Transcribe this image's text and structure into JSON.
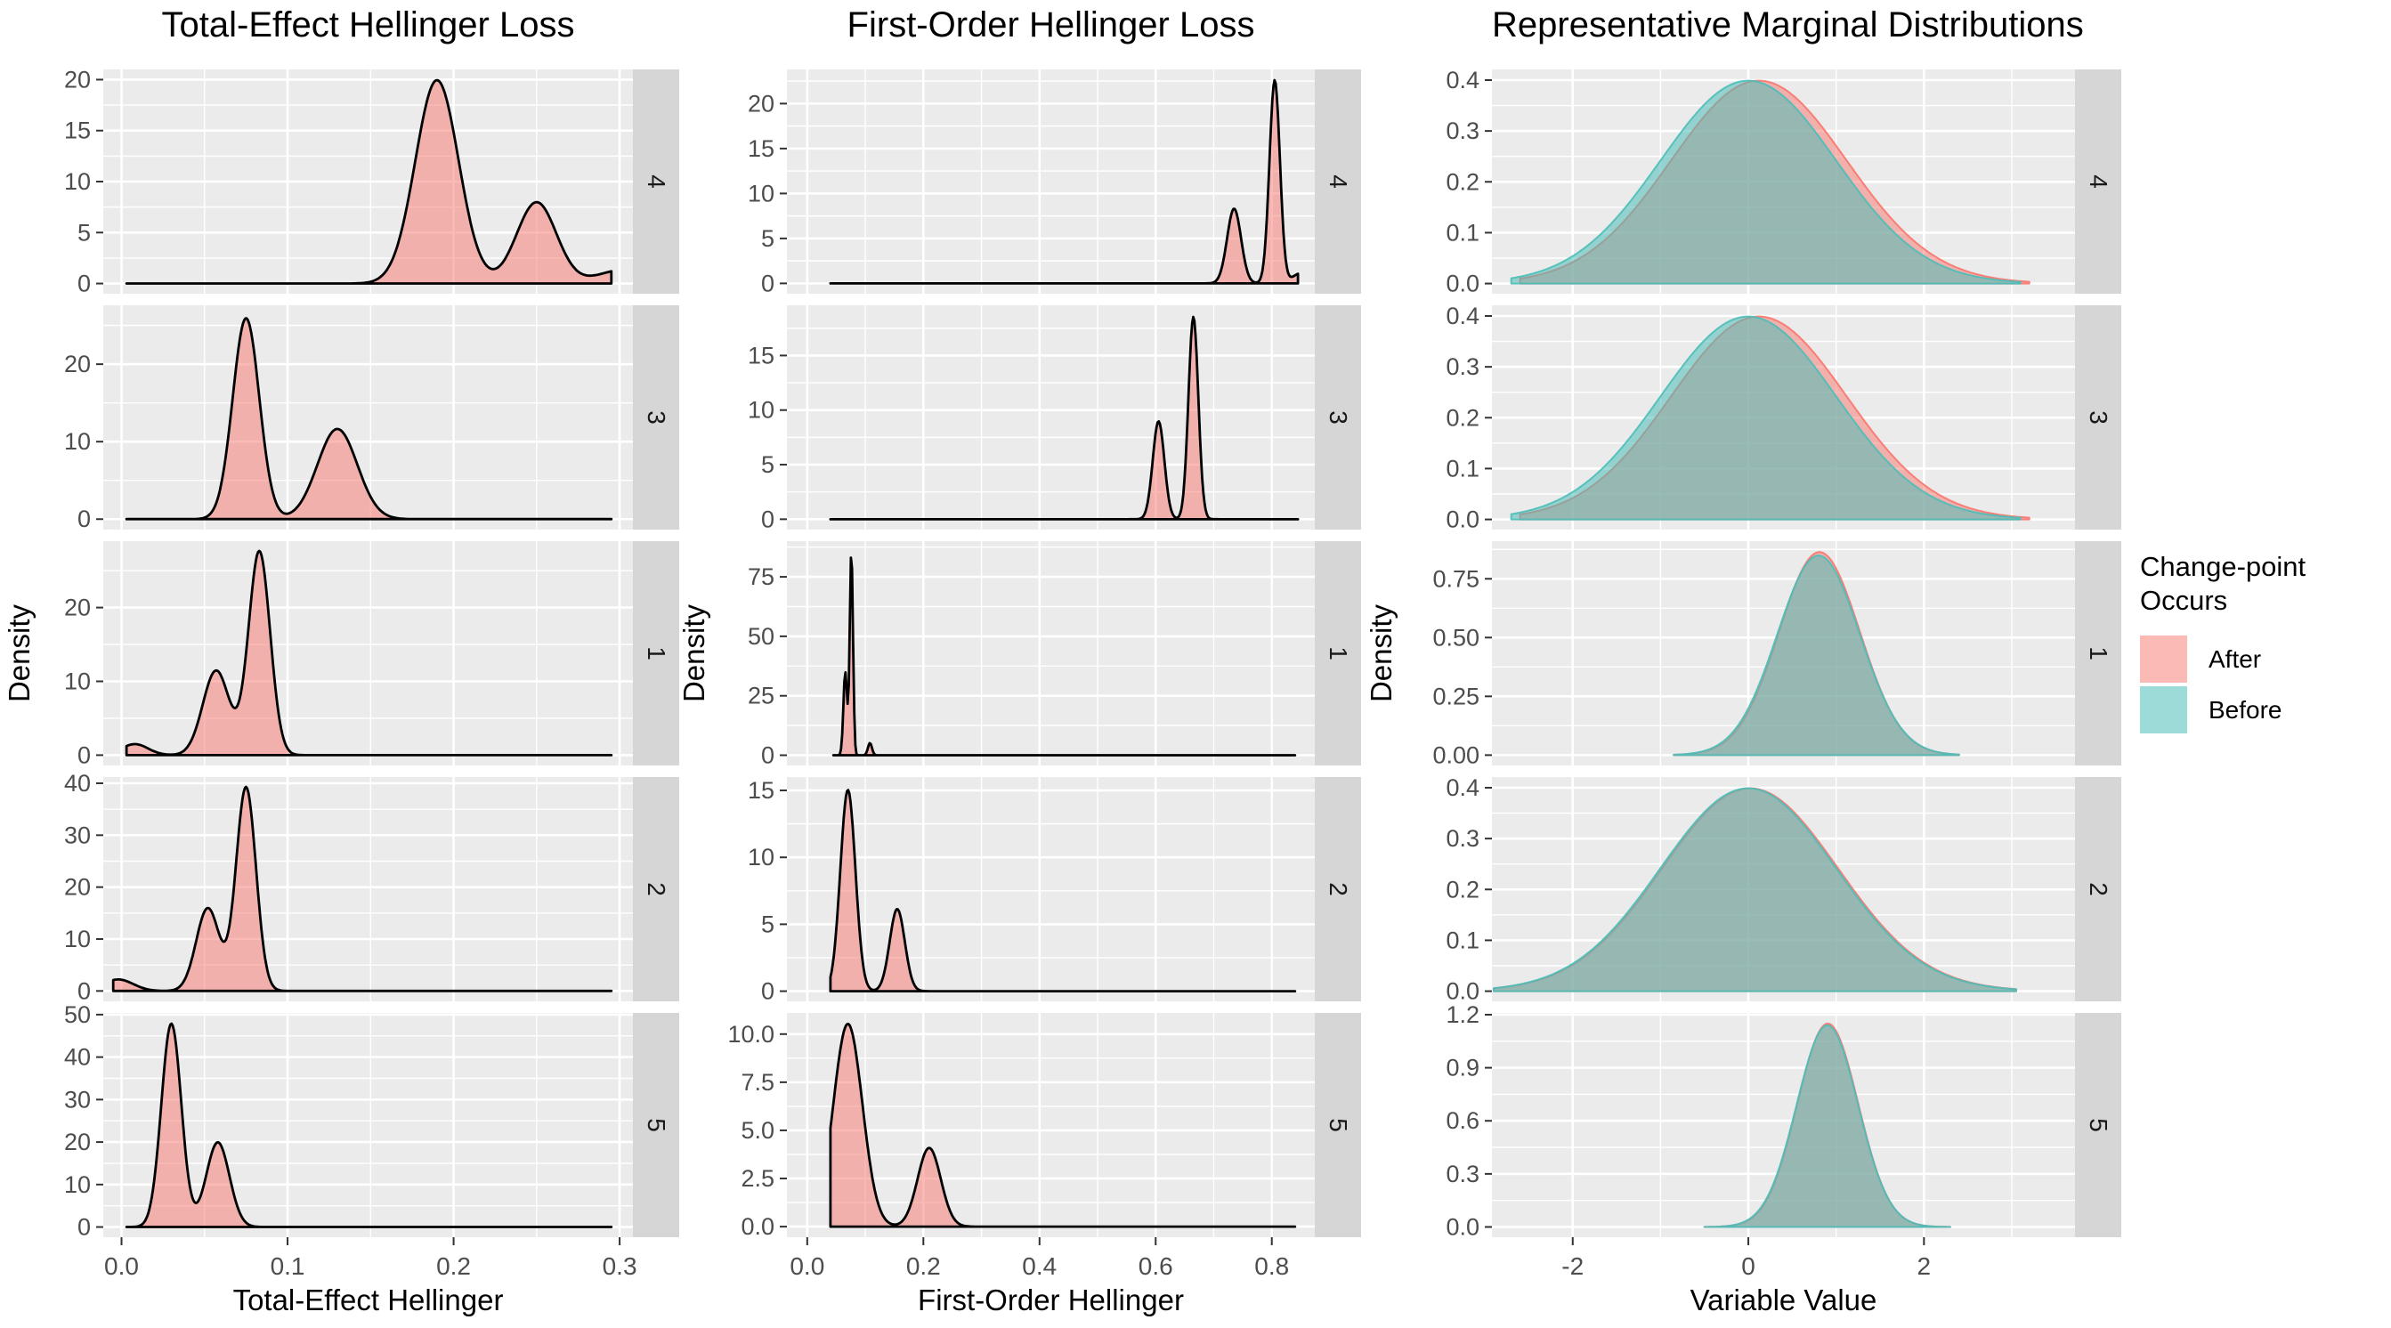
{
  "legend": {
    "title_lines": [
      "Change-point",
      "Occurs"
    ],
    "position": "right",
    "items": [
      {
        "label": "After",
        "color_hex": "#F8766D",
        "alpha": 0.5
      },
      {
        "label": "Before",
        "color_hex": "#4BBEB8",
        "alpha": 0.55
      }
    ]
  },
  "colors": {
    "panel_bg": "#EBEBEB",
    "strip_bg": "#D6D6D6",
    "grid": "#FFFFFF",
    "axis_text": "#4D4D4D",
    "strip_text": "#1A1A1A",
    "outline": "#000000"
  },
  "facet_labels_top_to_bottom": [
    "4",
    "3",
    "1",
    "2",
    "5"
  ],
  "chart_data": [
    {
      "type": "density",
      "title": "Total-Effect Hellinger Loss",
      "xlabel": "Total-Effect Hellinger",
      "ylabel": "Density",
      "outline": "black",
      "grid": true,
      "xlim": [
        -0.011,
        0.308
      ],
      "x_tick_values": [
        0,
        0.1,
        0.2,
        0.3
      ],
      "x_tick_labels": [
        "0.0",
        "0.1",
        "0.2",
        "0.3"
      ],
      "facets": [
        {
          "strip": "4",
          "ylim": [
            -1.0,
            21.0
          ],
          "y_tick_values": [
            0,
            5,
            10,
            15,
            20
          ],
          "y_tick_labels": [
            "0",
            "5",
            "10",
            "15",
            "20"
          ],
          "series": [
            {
              "name": "After",
              "domain": [
                0.003,
                0.295
              ],
              "mixture_w_mean_sd": [
                [
                  0.65,
                  0.19,
                  0.013
                ],
                [
                  0.24,
                  0.25,
                  0.012
                ],
                [
                  0.05,
                  0.302,
                  0.015
                ]
              ],
              "peaks": [
                {
                  "x": 0.19,
                  "y": 20.0
                },
                {
                  "x": 0.25,
                  "y": 8.0
                }
              ]
            }
          ]
        },
        {
          "strip": "3",
          "ylim": [
            -1.35,
            27.6
          ],
          "y_tick_values": [
            0,
            10,
            20
          ],
          "y_tick_labels": [
            "0",
            "10",
            "20"
          ],
          "series": [
            {
              "name": "After",
              "domain": [
                0.003,
                0.295
              ],
              "mixture_w_mean_sd": [
                [
                  0.52,
                  0.075,
                  0.008
                ],
                [
                  0.35,
                  0.13,
                  0.012
                ]
              ],
              "peaks": [
                {
                  "x": 0.075,
                  "y": 26.0
                },
                {
                  "x": 0.13,
                  "y": 11.6
                }
              ]
            }
          ]
        },
        {
          "strip": "1",
          "ylim": [
            -1.4,
            29.0
          ],
          "y_tick_values": [
            0,
            10,
            20
          ],
          "y_tick_labels": [
            "0",
            "10",
            "20"
          ],
          "series": [
            {
              "name": "After",
              "domain": [
                0.003,
                0.295
              ],
              "mixture_w_mean_sd": [
                [
                  0.03,
                  0.008,
                  0.008
                ],
                [
                  0.23,
                  0.057,
                  0.008
                ],
                [
                  0.45,
                  0.083,
                  0.0065
                ]
              ],
              "peaks": [
                {
                  "x": 0.008,
                  "y": 1.5
                },
                {
                  "x": 0.057,
                  "y": 11.5
                },
                {
                  "x": 0.083,
                  "y": 27.6
                }
              ]
            }
          ]
        },
        {
          "strip": "2",
          "ylim": [
            -2.0,
            41.2
          ],
          "y_tick_values": [
            0,
            10,
            20,
            30,
            40
          ],
          "y_tick_labels": [
            "0",
            "10",
            "20",
            "30",
            "40"
          ],
          "series": [
            {
              "name": "After",
              "domain": [
                -0.005,
                0.295
              ],
              "mixture_w_mean_sd": [
                [
                  0.05,
                  -0.002,
                  0.009
                ],
                [
                  0.28,
                  0.052,
                  0.007
                ],
                [
                  0.59,
                  0.075,
                  0.006
                ]
              ],
              "peaks": [
                {
                  "x": 0.0,
                  "y": 2.2
                },
                {
                  "x": 0.052,
                  "y": 16.0
                },
                {
                  "x": 0.075,
                  "y": 39.2
                }
              ]
            }
          ]
        },
        {
          "strip": "5",
          "ylim": [
            -2.4,
            50.4
          ],
          "y_tick_values": [
            0,
            10,
            20,
            30,
            40,
            50
          ],
          "y_tick_labels": [
            "0",
            "10",
            "20",
            "30",
            "40",
            "50"
          ],
          "series": [
            {
              "name": "After",
              "domain": [
                0.003,
                0.295
              ],
              "mixture_w_mean_sd": [
                [
                  0.72,
                  0.03,
                  0.006
                ],
                [
                  0.35,
                  0.058,
                  0.007
                ]
              ],
              "peaks": [
                {
                  "x": 0.03,
                  "y": 47.9
                },
                {
                  "x": 0.058,
                  "y": 19.9
                }
              ]
            }
          ]
        }
      ]
    },
    {
      "type": "density",
      "title": "First-Order Hellinger Loss",
      "xlabel": "First-Order Hellinger",
      "ylabel": "Density",
      "outline": "black",
      "grid": true,
      "xlim": [
        -0.035,
        0.874
      ],
      "x_tick_values": [
        0,
        0.2,
        0.4,
        0.6,
        0.8
      ],
      "x_tick_labels": [
        "0.0",
        "0.2",
        "0.4",
        "0.6",
        "0.8"
      ],
      "facets": [
        {
          "strip": "4",
          "ylim": [
            -1.15,
            23.8
          ],
          "y_tick_values": [
            0,
            5,
            10,
            15,
            20
          ],
          "y_tick_labels": [
            "0",
            "5",
            "10",
            "15",
            "20"
          ],
          "series": [
            {
              "name": "After",
              "domain": [
                0.04,
                0.845
              ],
              "mixture_w_mean_sd": [
                [
                  0.51,
                  0.805,
                  0.009
                ],
                [
                  0.25,
                  0.735,
                  0.012
                ],
                [
                  0.04,
                  0.85,
                  0.014
                ]
              ],
              "peaks": [
                {
                  "x": 0.735,
                  "y": 9.0
                },
                {
                  "x": 0.805,
                  "y": 22.6
                }
              ]
            }
          ]
        },
        {
          "strip": "3",
          "ylim": [
            -0.95,
            19.6
          ],
          "y_tick_values": [
            0,
            5,
            10,
            15
          ],
          "y_tick_labels": [
            "0",
            "5",
            "10",
            "15"
          ],
          "series": [
            {
              "name": "After",
              "domain": [
                0.04,
                0.845
              ],
              "mixture_w_mean_sd": [
                [
                  0.395,
                  0.665,
                  0.0085
                ],
                [
                  0.225,
                  0.605,
                  0.01
                ]
              ],
              "peaks": [
                {
                  "x": 0.605,
                  "y": 9.0
                },
                {
                  "x": 0.665,
                  "y": 18.5
                }
              ]
            }
          ]
        },
        {
          "strip": "1",
          "ylim": [
            -4.3,
            90.0
          ],
          "y_tick_values": [
            0,
            25,
            50,
            75
          ],
          "y_tick_labels": [
            "0",
            "25",
            "50",
            "75"
          ],
          "series": [
            {
              "name": "After",
              "domain": [
                0.045,
                0.84
              ],
              "mixture_w_mean_sd": [
                [
                  0.6,
                  0.076,
                  0.0028
                ],
                [
                  0.28,
                  0.0655,
                  0.0032
                ],
                [
                  0.045,
                  0.108,
                  0.0035
                ]
              ],
              "peaks": [
                {
                  "x": 0.0655,
                  "y": 35.0
                },
                {
                  "x": 0.076,
                  "y": 85.5
                },
                {
                  "x": 0.108,
                  "y": 5.1
                }
              ]
            }
          ]
        },
        {
          "strip": "2",
          "ylim": [
            -0.76,
            16.0
          ],
          "y_tick_values": [
            0,
            5,
            10,
            15
          ],
          "y_tick_labels": [
            "0",
            "5",
            "10",
            "15"
          ],
          "series": [
            {
              "name": "After",
              "domain": [
                0.04,
                0.84
              ],
              "mixture_w_mean_sd": [
                [
                  0.49,
                  0.07,
                  0.013
                ],
                [
                  0.2,
                  0.155,
                  0.013
                ]
              ],
              "peaks": [
                {
                  "x": 0.07,
                  "y": 15.0
                },
                {
                  "x": 0.155,
                  "y": 6.1
                }
              ]
            }
          ]
        },
        {
          "strip": "5",
          "ylim": [
            -0.55,
            11.1
          ],
          "y_tick_values": [
            0,
            2.5,
            5,
            7.5,
            10
          ],
          "y_tick_labels": [
            "0.0",
            "2.5",
            "5.0",
            "7.5",
            "10.0"
          ],
          "series": [
            {
              "name": "After",
              "domain": [
                0.04,
                0.84
              ],
              "mixture_w_mean_sd": [
                [
                  0.66,
                  0.07,
                  0.025
                ],
                [
                  0.205,
                  0.21,
                  0.02
                ]
              ],
              "peaks": [
                {
                  "x": 0.07,
                  "y": 10.5
                },
                {
                  "x": 0.21,
                  "y": 4.1
                }
              ]
            }
          ]
        }
      ]
    },
    {
      "type": "density",
      "title": "Representative Marginal Distributions",
      "xlabel": "Variable Value",
      "ylabel": "Density",
      "outline": "match",
      "grid": true,
      "xlim": [
        -2.92,
        3.72
      ],
      "x_tick_values": [
        -2,
        0,
        2
      ],
      "x_tick_labels": [
        "-2",
        "0",
        "2"
      ],
      "facets": [
        {
          "strip": "4",
          "ylim": [
            -0.02,
            0.421
          ],
          "y_tick_values": [
            0,
            0.1,
            0.2,
            0.3,
            0.4
          ],
          "y_tick_labels": [
            "0.0",
            "0.1",
            "0.2",
            "0.3",
            "0.4"
          ],
          "series": [
            {
              "name": "After",
              "domain": [
                -2.6,
                3.2
              ],
              "mixture_w_mean_sd": [
                [
                  1,
                  0.12,
                  1
                ]
              ],
              "peaks": [
                {
                  "x": 0.12,
                  "y": 0.399
                }
              ]
            },
            {
              "name": "Before",
              "domain": [
                -2.7,
                3.1
              ],
              "mixture_w_mean_sd": [
                [
                  1,
                  0,
                  1
                ]
              ],
              "peaks": [
                {
                  "x": 0.0,
                  "y": 0.399
                }
              ]
            }
          ]
        },
        {
          "strip": "3",
          "ylim": [
            -0.02,
            0.421
          ],
          "y_tick_values": [
            0,
            0.1,
            0.2,
            0.3,
            0.4
          ],
          "y_tick_labels": [
            "0.0",
            "0.1",
            "0.2",
            "0.3",
            "0.4"
          ],
          "series": [
            {
              "name": "After",
              "domain": [
                -2.6,
                3.2
              ],
              "mixture_w_mean_sd": [
                [
                  1,
                  0.12,
                  1
                ]
              ],
              "peaks": [
                {
                  "x": 0.12,
                  "y": 0.399
                }
              ]
            },
            {
              "name": "Before",
              "domain": [
                -2.7,
                3.1
              ],
              "mixture_w_mean_sd": [
                [
                  1,
                  0,
                  1
                ]
              ],
              "peaks": [
                {
                  "x": 0.0,
                  "y": 0.399
                }
              ]
            }
          ]
        },
        {
          "strip": "1",
          "ylim": [
            -0.044,
            0.91
          ],
          "y_tick_values": [
            0,
            0.25,
            0.5,
            0.75
          ],
          "y_tick_labels": [
            "0.00",
            "0.25",
            "0.50",
            "0.75"
          ],
          "series": [
            {
              "name": "After",
              "domain": [
                -0.85,
                2.4
              ],
              "mixture_w_mean_sd": [
                [
                  1,
                  0.81,
                  0.462
                ]
              ],
              "peaks": [
                {
                  "x": 0.81,
                  "y": 0.864
                }
              ]
            },
            {
              "name": "Before",
              "domain": [
                -0.85,
                2.4
              ],
              "mixture_w_mean_sd": [
                [
                  1,
                  0.8,
                  0.47
                ]
              ],
              "peaks": [
                {
                  "x": 0.8,
                  "y": 0.849
                }
              ]
            }
          ]
        },
        {
          "strip": "2",
          "ylim": [
            -0.02,
            0.421
          ],
          "y_tick_values": [
            0,
            0.1,
            0.2,
            0.3,
            0.4
          ],
          "y_tick_labels": [
            "0.0",
            "0.1",
            "0.2",
            "0.3",
            "0.4"
          ],
          "series": [
            {
              "name": "After",
              "domain": [
                -2.9,
                3.05
              ],
              "mixture_w_mean_sd": [
                [
                  1,
                  0.02,
                  1
                ]
              ],
              "peaks": [
                {
                  "x": 0.02,
                  "y": 0.399
                }
              ]
            },
            {
              "name": "Before",
              "domain": [
                -2.9,
                3.05
              ],
              "mixture_w_mean_sd": [
                [
                  1,
                  0,
                  1
                ]
              ],
              "peaks": [
                {
                  "x": 0.0,
                  "y": 0.399
                }
              ]
            }
          ]
        },
        {
          "strip": "5",
          "ylim": [
            -0.058,
            1.21
          ],
          "y_tick_values": [
            0,
            0.3,
            0.6,
            0.9,
            1.2
          ],
          "y_tick_labels": [
            "0.0",
            "0.3",
            "0.6",
            "0.9",
            "1.2"
          ],
          "series": [
            {
              "name": "After",
              "domain": [
                -0.5,
                2.3
              ],
              "mixture_w_mean_sd": [
                [
                  1,
                  0.905,
                  0.347
                ]
              ],
              "peaks": [
                {
                  "x": 0.905,
                  "y": 1.15
                }
              ]
            },
            {
              "name": "Before",
              "domain": [
                -0.5,
                2.3
              ],
              "mixture_w_mean_sd": [
                [
                  1,
                  0.9,
                  0.35
                ]
              ],
              "peaks": [
                {
                  "x": 0.9,
                  "y": 1.14
                }
              ]
            }
          ]
        }
      ]
    }
  ]
}
